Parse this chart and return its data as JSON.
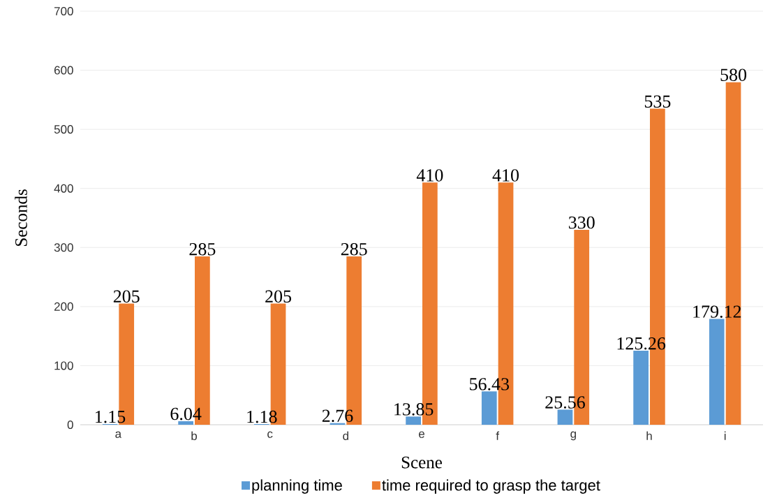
{
  "chart_data": {
    "type": "bar",
    "xlabel": "Scene",
    "ylabel": "Seconds",
    "categories": [
      "a",
      "b",
      "c",
      "d",
      "e",
      "f",
      "g",
      "h",
      "i"
    ],
    "series": [
      {
        "name": "planning time",
        "color": "#5b9bd5",
        "values": [
          1.15,
          6.04,
          1.18,
          2.76,
          13.85,
          56.43,
          25.56,
          125.26,
          179.12
        ]
      },
      {
        "name": "time required to grasp the target",
        "color": "#ed7d31",
        "values": [
          205,
          285,
          205,
          285,
          410,
          410,
          330,
          535,
          580
        ]
      }
    ],
    "ylim": [
      0,
      700
    ],
    "yticks": [
      0,
      100,
      200,
      300,
      400,
      500,
      600,
      700
    ],
    "grid": "y",
    "legend": "bottom",
    "data_labels": true
  }
}
